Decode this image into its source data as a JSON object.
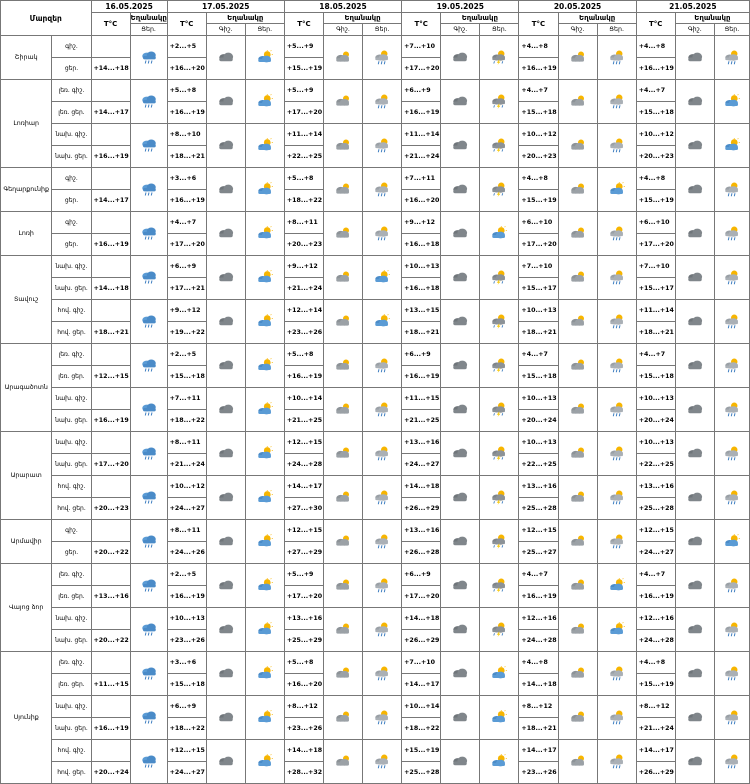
{
  "header": {
    "region_label": "Մարզեր",
    "temp_label": "T°C",
    "weather_label": "Եղանակը",
    "day_label": "Ցեր.",
    "night_label": "Գիշ.",
    "dates": [
      "16.05.2025",
      "17.05.2025",
      "18.05.2025",
      "19.05.2025",
      "20.05.2025",
      "21.05.2025"
    ]
  },
  "icon_legend": {
    "rain_cloud": "cloud with rain",
    "sun_cloud": "sun behind cloud",
    "sun_rain": "sun behind cloud with rain",
    "sun_storm": "sun with thundercloud",
    "cloud": "dark cloud",
    "cloud_sun_light": "grey cloud with sun"
  },
  "regions": [
    {
      "name": "Շիրակ",
      "rows": [
        {
          "sub": "գիշ.",
          "d0": "",
          "d1": "+2...+5",
          "d2": "+5...+9",
          "d3": "+7...+10",
          "d4": "+4...+8",
          "d5": "+4...+8"
        },
        {
          "sub": "ցեր.",
          "d0": "+14...+18",
          "d1": "+16...+20",
          "d2": "+15...+19",
          "d3": "+17...+20",
          "d4": "+16...+19",
          "d5": "+16...+19"
        }
      ]
    },
    {
      "name": "Լոռիար",
      "rows": [
        {
          "sub": "լեռ.",
          "sub2": "գիշ.",
          "d0": "",
          "d1": "+5...+8",
          "d2": "+5...+9",
          "d3": "+6...+9",
          "d4": "+4...+7",
          "d5": "+4...+7"
        },
        {
          "sub": "լեռ.",
          "sub2": "ցեր.",
          "d0": "+14...+17",
          "d1": "+16...+19",
          "d2": "+17...+20",
          "d3": "+16...+19",
          "d4": "+15...+18",
          "d5": "+15...+18"
        },
        {
          "sub": "նախ.",
          "sub2": "գիշ.",
          "d0": "",
          "d1": "+8...+10",
          "d2": "+11...+14",
          "d3": "+11...+14",
          "d4": "+10...+12",
          "d5": "+10...+12"
        },
        {
          "sub": "նախ.",
          "sub2": "ցեր.",
          "d0": "+16...+19",
          "d1": "+18...+21",
          "d2": "+22...+25",
          "d3": "+21...+24",
          "d4": "+20...+23",
          "d5": "+20...+23"
        }
      ]
    },
    {
      "name": "Գեղարքունիք",
      "rows": [
        {
          "sub": "գիշ.",
          "d0": "",
          "d1": "+3...+6",
          "d2": "+5...+8",
          "d3": "+7...+11",
          "d4": "+4...+8",
          "d5": "+4...+8"
        },
        {
          "sub": "ցեր.",
          "d0": "+14...+17",
          "d1": "+16...+19",
          "d2": "+18...+22",
          "d3": "+16...+20",
          "d4": "+15...+19",
          "d5": "+15...+19"
        }
      ]
    },
    {
      "name": "Լոռի",
      "rows": [
        {
          "sub": "գիշ.",
          "d0": "",
          "d1": "+4...+7",
          "d2": "+8...+11",
          "d3": "+9...+12",
          "d4": "+6...+10",
          "d5": "+6...+10"
        },
        {
          "sub": "ցեր.",
          "d0": "+16...+19",
          "d1": "+17...+20",
          "d2": "+20...+23",
          "d3": "+16...+18",
          "d4": "+17...+20",
          "d5": "+17...+20"
        }
      ]
    },
    {
      "name": "Տավուշ",
      "rows": [
        {
          "sub": "նախ.",
          "sub2": "գիշ.",
          "d0": "",
          "d1": "+6...+9",
          "d2": "+9...+12",
          "d3": "+10...+13",
          "d4": "+7...+10",
          "d5": "+7...+10"
        },
        {
          "sub": "նախ.",
          "sub2": "ցեր.",
          "d0": "+14...+18",
          "d1": "+17...+21",
          "d2": "+21...+24",
          "d3": "+16...+18",
          "d4": "+15...+17",
          "d5": "+15...+17"
        },
        {
          "sub": "հով.",
          "sub2": "գիշ.",
          "d0": "",
          "d1": "+9...+12",
          "d2": "+12...+14",
          "d3": "+13...+15",
          "d4": "+10...+13",
          "d5": "+11...+14"
        },
        {
          "sub": "հով.",
          "sub2": "ցեր.",
          "d0": "+18...+21",
          "d1": "+19...+22",
          "d2": "+23...+26",
          "d3": "+18...+21",
          "d4": "+18...+21",
          "d5": "+18...+21"
        }
      ]
    },
    {
      "name": "Արագածոտն",
      "rows": [
        {
          "sub": "լեռ.",
          "sub2": "գիշ.",
          "d0": "",
          "d1": "+2...+5",
          "d2": "+5...+8",
          "d3": "+6...+9",
          "d4": "+4...+7",
          "d5": "+4...+7"
        },
        {
          "sub": "լեռ.",
          "sub2": "ցեր.",
          "d0": "+12...+15",
          "d1": "+15...+18",
          "d2": "+16...+19",
          "d3": "+16...+19",
          "d4": "+15...+18",
          "d5": "+15...+18"
        },
        {
          "sub": "նախ.",
          "sub2": "գիշ.",
          "d0": "",
          "d1": "+7...+11",
          "d2": "+10...+14",
          "d3": "+11...+15",
          "d4": "+10...+13",
          "d5": "+10...+13"
        },
        {
          "sub": "նախ.",
          "sub2": "ցեր.",
          "d0": "+16...+19",
          "d1": "+18...+22",
          "d2": "+21...+25",
          "d3": "+21...+25",
          "d4": "+20...+24",
          "d5": "+20...+24"
        }
      ]
    },
    {
      "name": "Արարատ",
      "rows": [
        {
          "sub": "նախ.",
          "sub2": "գիշ.",
          "d0": "",
          "d1": "+8...+11",
          "d2": "+12...+15",
          "d3": "+13...+16",
          "d4": "+10...+13",
          "d5": "+10...+13"
        },
        {
          "sub": "նախ.",
          "sub2": "ցեր.",
          "d0": "+17...+20",
          "d1": "+21...+24",
          "d2": "+24...+28",
          "d3": "+24...+27",
          "d4": "+22...+25",
          "d5": "+22...+25"
        },
        {
          "sub": "հով.",
          "sub2": "գիշ.",
          "d0": "",
          "d1": "+10...+12",
          "d2": "+14...+17",
          "d3": "+14...+18",
          "d4": "+13...+16",
          "d5": "+13...+16"
        },
        {
          "sub": "հով.",
          "sub2": "ցեր.",
          "d0": "+20...+23",
          "d1": "+24...+27",
          "d2": "+27...+30",
          "d3": "+26...+29",
          "d4": "+25...+28",
          "d5": "+25...+28"
        }
      ]
    },
    {
      "name": "Արմավիր",
      "rows": [
        {
          "sub": "գիշ.",
          "d0": "",
          "d1": "+8...+11",
          "d2": "+12...+15",
          "d3": "+13...+16",
          "d4": "+12...+15",
          "d5": "+12...+15"
        },
        {
          "sub": "ցեր.",
          "d0": "+20...+22",
          "d1": "+24...+26",
          "d2": "+27...+29",
          "d3": "+26...+28",
          "d4": "+25...+27",
          "d5": "+24...+27"
        }
      ]
    },
    {
      "name": "Վայոց ձոր",
      "rows": [
        {
          "sub": "լեռ.",
          "sub2": "գիշ.",
          "d0": "",
          "d1": "+2...+5",
          "d2": "+5...+9",
          "d3": "+6...+9",
          "d4": "+4...+7",
          "d5": "+4...+7"
        },
        {
          "sub": "լեռ.",
          "sub2": "ցեր.",
          "d0": "+13...+16",
          "d1": "+16...+19",
          "d2": "+17...+20",
          "d3": "+17...+20",
          "d4": "+16...+19",
          "d5": "+16...+19"
        },
        {
          "sub": "նախ.",
          "sub2": "գիշ.",
          "d0": "",
          "d1": "+10...+13",
          "d2": "+13...+16",
          "d3": "+14...+18",
          "d4": "+12...+16",
          "d5": "+12...+16"
        },
        {
          "sub": "նախ.",
          "sub2": "ցեր.",
          "d0": "+20...+22",
          "d1": "+23...+26",
          "d2": "+25...+29",
          "d3": "+26...+29",
          "d4": "+24...+28",
          "d5": "+24...+28"
        }
      ]
    },
    {
      "name": "Սյունիք",
      "rows": [
        {
          "sub": "լեռ.",
          "sub2": "գիշ.",
          "d0": "",
          "d1": "+3...+6",
          "d2": "+5...+8",
          "d3": "+7...+10",
          "d4": "+4...+8",
          "d5": "+4...+8"
        },
        {
          "sub": "լեռ.",
          "sub2": "ցեր.",
          "d0": "+11...+15",
          "d1": "+15...+18",
          "d2": "+16...+20",
          "d3": "+14...+17",
          "d4": "+14...+18",
          "d5": "+15...+19"
        },
        {
          "sub": "նախ.",
          "sub2": "գիշ.",
          "d0": "",
          "d1": "+6...+9",
          "d2": "+8...+12",
          "d3": "+10...+14",
          "d4": "+8...+12",
          "d5": "+8...+12"
        },
        {
          "sub": "նախ.",
          "sub2": "ցեր.",
          "d0": "+16...+19",
          "d1": "+18...+22",
          "d2": "+23...+26",
          "d3": "+18...+22",
          "d4": "+18...+21",
          "d5": "+21...+24"
        },
        {
          "sub": "հով.",
          "sub2": "գիշ.",
          "d0": "",
          "d1": "+12...+15",
          "d2": "+14...+18",
          "d3": "+15...+19",
          "d4": "+14...+17",
          "d5": "+14...+17"
        },
        {
          "sub": "հով.",
          "sub2": "ցեր.",
          "d0": "+20...+24",
          "d1": "+24...+27",
          "d2": "+28...+32",
          "d3": "+25...+28",
          "d4": "+23...+26",
          "d5": "+26...+29"
        }
      ]
    }
  ]
}
